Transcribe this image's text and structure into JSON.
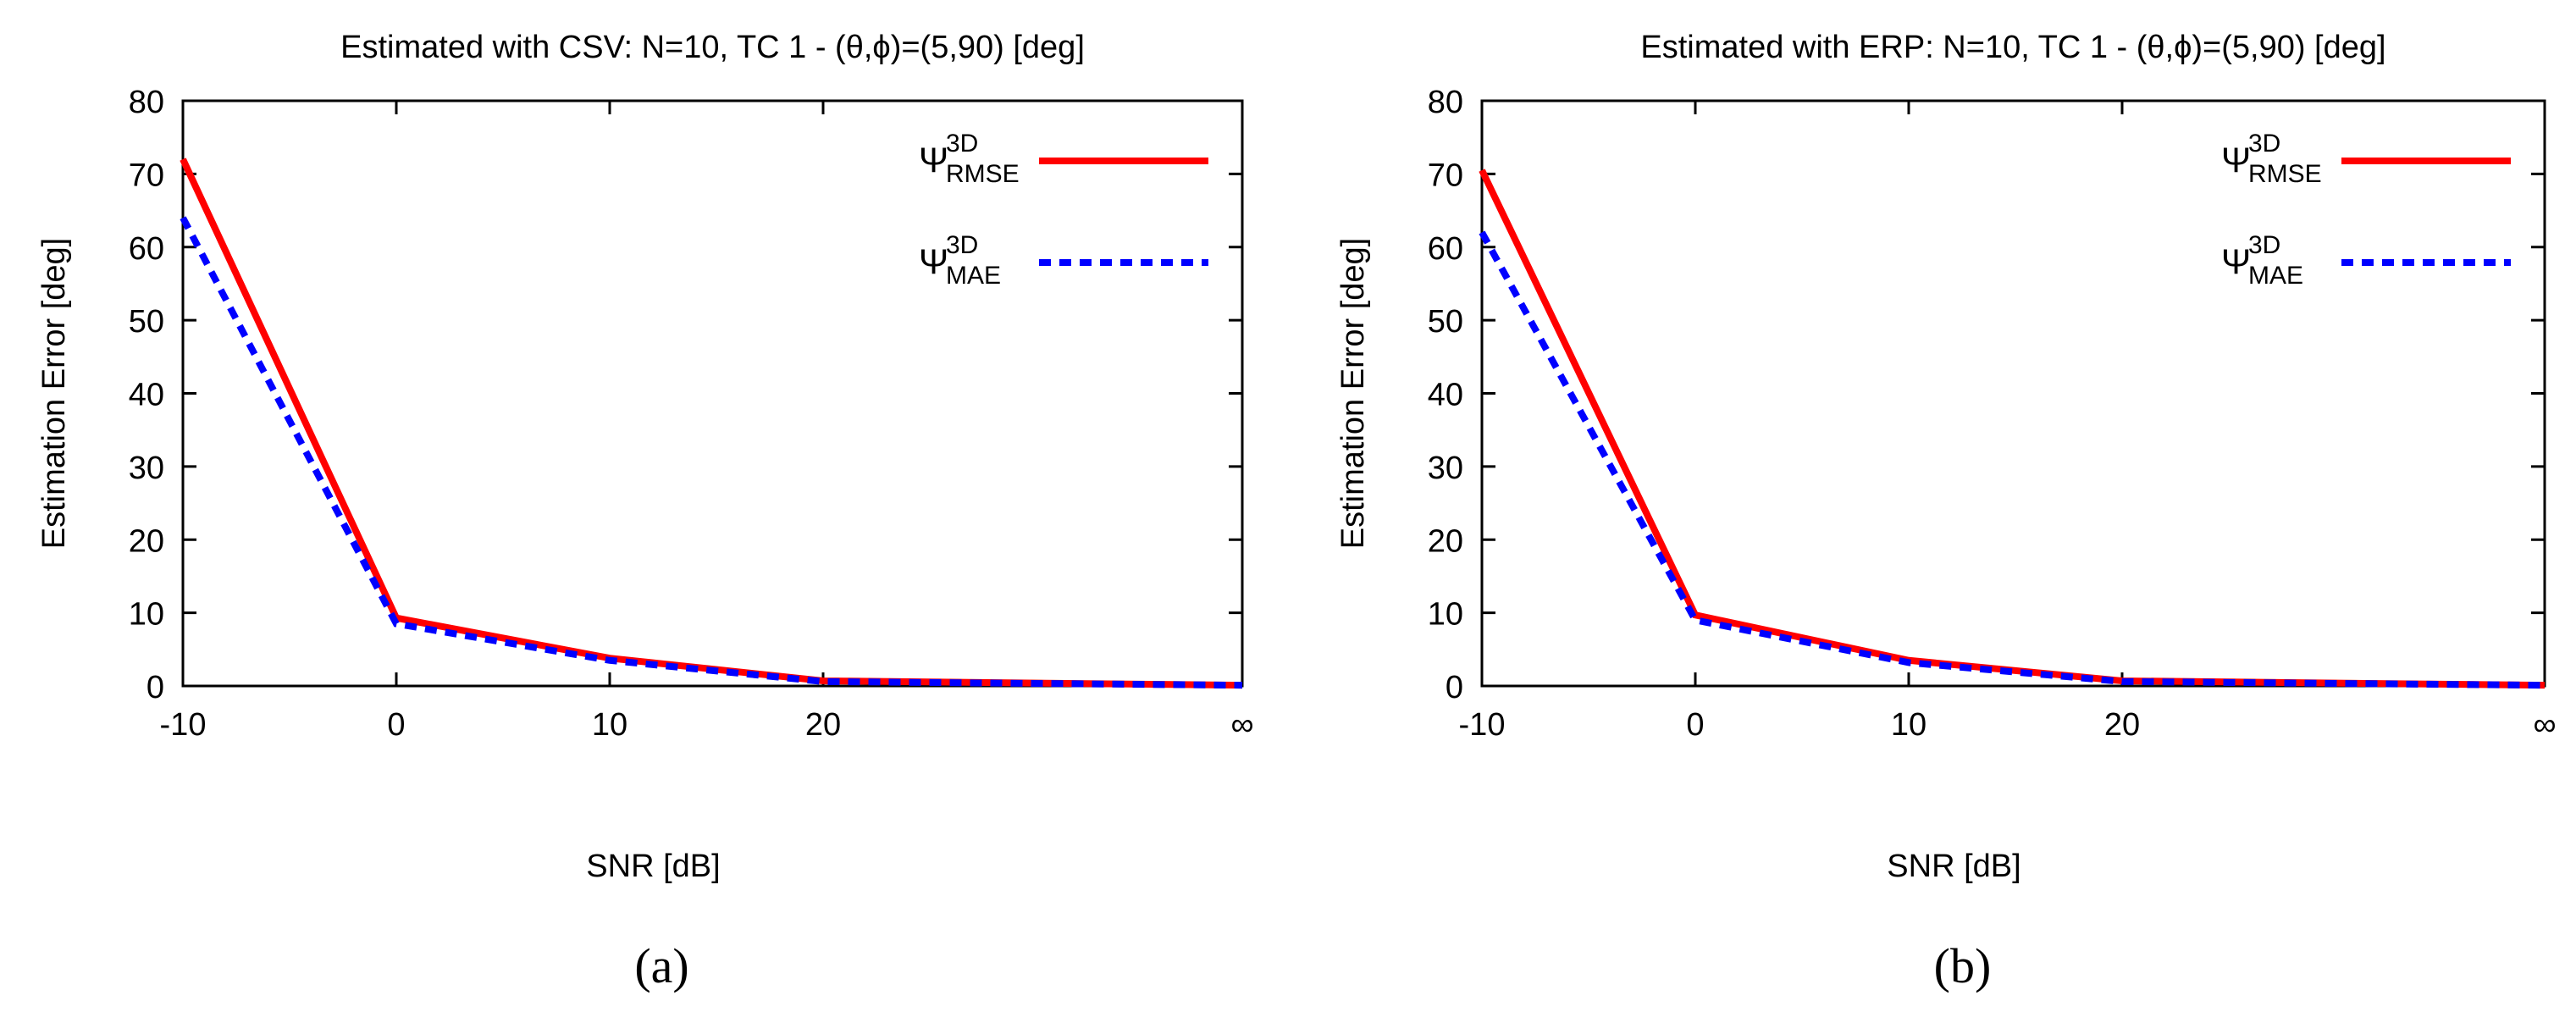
{
  "chart_data": [
    {
      "type": "line",
      "title": "Estimated with CSV: N=10, TC 1 - (θ,ϕ)=(5,90) [deg]",
      "xlabel": "SNR [dB]",
      "ylabel": "Estimation Error [deg]",
      "caption": "(a)",
      "x_tick_labels": [
        "-10",
        "0",
        "10",
        "20",
        "∞"
      ],
      "y_ticks": [
        "0",
        "10",
        "20",
        "30",
        "40",
        "50",
        "60",
        "70",
        "80"
      ],
      "ylim": [
        0,
        80
      ],
      "legend_position": "top-right",
      "grid": false,
      "series": [
        {
          "name": "Ψ",
          "sup": "3D",
          "sub": "RMSE",
          "style": "solid",
          "color": "#ff0000",
          "values": [
            72,
            9.3,
            3.8,
            0.7,
            0.1
          ]
        },
        {
          "name": "Ψ",
          "sup": "3D",
          "sub": "MAE",
          "style": "dashed",
          "color": "#0000ff",
          "values": [
            64,
            8.5,
            3.5,
            0.6,
            0.1
          ]
        }
      ]
    },
    {
      "type": "line",
      "title": "Estimated with ERP: N=10, TC 1 - (θ,ϕ)=(5,90) [deg]",
      "xlabel": "SNR [dB]",
      "ylabel": "Estimation Error [deg]",
      "caption": "(b)",
      "x_tick_labels": [
        "-10",
        "0",
        "10",
        "20",
        "∞"
      ],
      "y_ticks": [
        "0",
        "10",
        "20",
        "30",
        "40",
        "50",
        "60",
        "70",
        "80"
      ],
      "ylim": [
        0,
        80
      ],
      "legend_position": "top-right",
      "grid": false,
      "series": [
        {
          "name": "Ψ",
          "sup": "3D",
          "sub": "RMSE",
          "style": "solid",
          "color": "#ff0000",
          "values": [
            70.5,
            9.7,
            3.5,
            0.7,
            0.1
          ]
        },
        {
          "name": "Ψ",
          "sup": "3D",
          "sub": "MAE",
          "style": "dashed",
          "color": "#0000ff",
          "values": [
            62,
            9.0,
            3.2,
            0.6,
            0.1
          ]
        }
      ]
    }
  ]
}
